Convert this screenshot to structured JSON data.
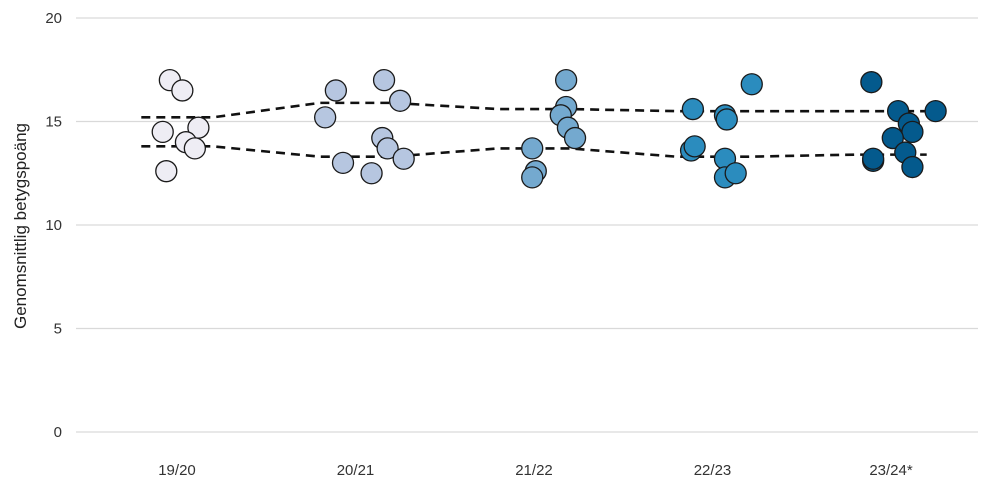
{
  "chart_data": {
    "type": "scatter",
    "ylabel": "Genomsnittlig betygspoäng",
    "xlabel": "",
    "ylim": [
      0,
      20
    ],
    "yticks": [
      0,
      5,
      10,
      15,
      20
    ],
    "categories": [
      "19/20",
      "20/21",
      "21/22",
      "22/23",
      "23/24*"
    ],
    "grid": true,
    "legend": "none",
    "colors": [
      "#eeedf4",
      "#b6c6e0",
      "#74a9cf",
      "#2b8cbe",
      "#045a8d"
    ],
    "series": [
      {
        "category": "19/20",
        "points": [
          {
            "x": -0.04,
            "y": 17.0
          },
          {
            "x": 0.03,
            "y": 16.5
          },
          {
            "x": -0.08,
            "y": 14.5
          },
          {
            "x": 0.12,
            "y": 14.7
          },
          {
            "x": 0.05,
            "y": 14.0
          },
          {
            "x": 0.1,
            "y": 13.7
          },
          {
            "x": -0.06,
            "y": 12.6
          }
        ]
      },
      {
        "category": "20/21",
        "points": [
          {
            "x": -0.11,
            "y": 16.5
          },
          {
            "x": 0.16,
            "y": 17.0
          },
          {
            "x": 0.25,
            "y": 16.0
          },
          {
            "x": -0.17,
            "y": 15.2
          },
          {
            "x": 0.15,
            "y": 14.2
          },
          {
            "x": 0.18,
            "y": 13.7
          },
          {
            "x": 0.27,
            "y": 13.2
          },
          {
            "x": -0.07,
            "y": 13.0
          },
          {
            "x": 0.09,
            "y": 12.5
          }
        ]
      },
      {
        "category": "21/22",
        "points": [
          {
            "x": 0.18,
            "y": 17.0
          },
          {
            "x": 0.18,
            "y": 15.7
          },
          {
            "x": 0.15,
            "y": 15.3
          },
          {
            "x": 0.19,
            "y": 14.7
          },
          {
            "x": 0.23,
            "y": 14.2
          },
          {
            "x": -0.01,
            "y": 13.7
          },
          {
            "x": 0.01,
            "y": 12.6
          },
          {
            "x": -0.01,
            "y": 12.3
          }
        ]
      },
      {
        "category": "22/23",
        "points": [
          {
            "x": 0.22,
            "y": 16.8
          },
          {
            "x": -0.11,
            "y": 15.6
          },
          {
            "x": 0.07,
            "y": 15.3
          },
          {
            "x": 0.08,
            "y": 15.1
          },
          {
            "x": -0.12,
            "y": 13.6
          },
          {
            "x": -0.1,
            "y": 13.8
          },
          {
            "x": 0.07,
            "y": 13.2
          },
          {
            "x": 0.07,
            "y": 12.3
          },
          {
            "x": 0.13,
            "y": 12.5
          }
        ]
      },
      {
        "category": "23/24*",
        "points": [
          {
            "x": -0.11,
            "y": 16.9
          },
          {
            "x": 0.04,
            "y": 15.5
          },
          {
            "x": 0.25,
            "y": 15.5
          },
          {
            "x": 0.1,
            "y": 14.9
          },
          {
            "x": 0.12,
            "y": 14.5
          },
          {
            "x": 0.01,
            "y": 14.2
          },
          {
            "x": 0.08,
            "y": 13.5
          },
          {
            "x": -0.1,
            "y": 13.1
          },
          {
            "x": -0.1,
            "y": 13.2
          },
          {
            "x": 0.12,
            "y": 12.8
          }
        ]
      }
    ],
    "reference_lines": [
      {
        "style": "dashed",
        "values": [
          15.2,
          15.9,
          15.6,
          15.5,
          15.5
        ]
      },
      {
        "style": "dashed",
        "values": [
          13.8,
          13.3,
          13.7,
          13.3,
          13.4
        ]
      }
    ]
  }
}
